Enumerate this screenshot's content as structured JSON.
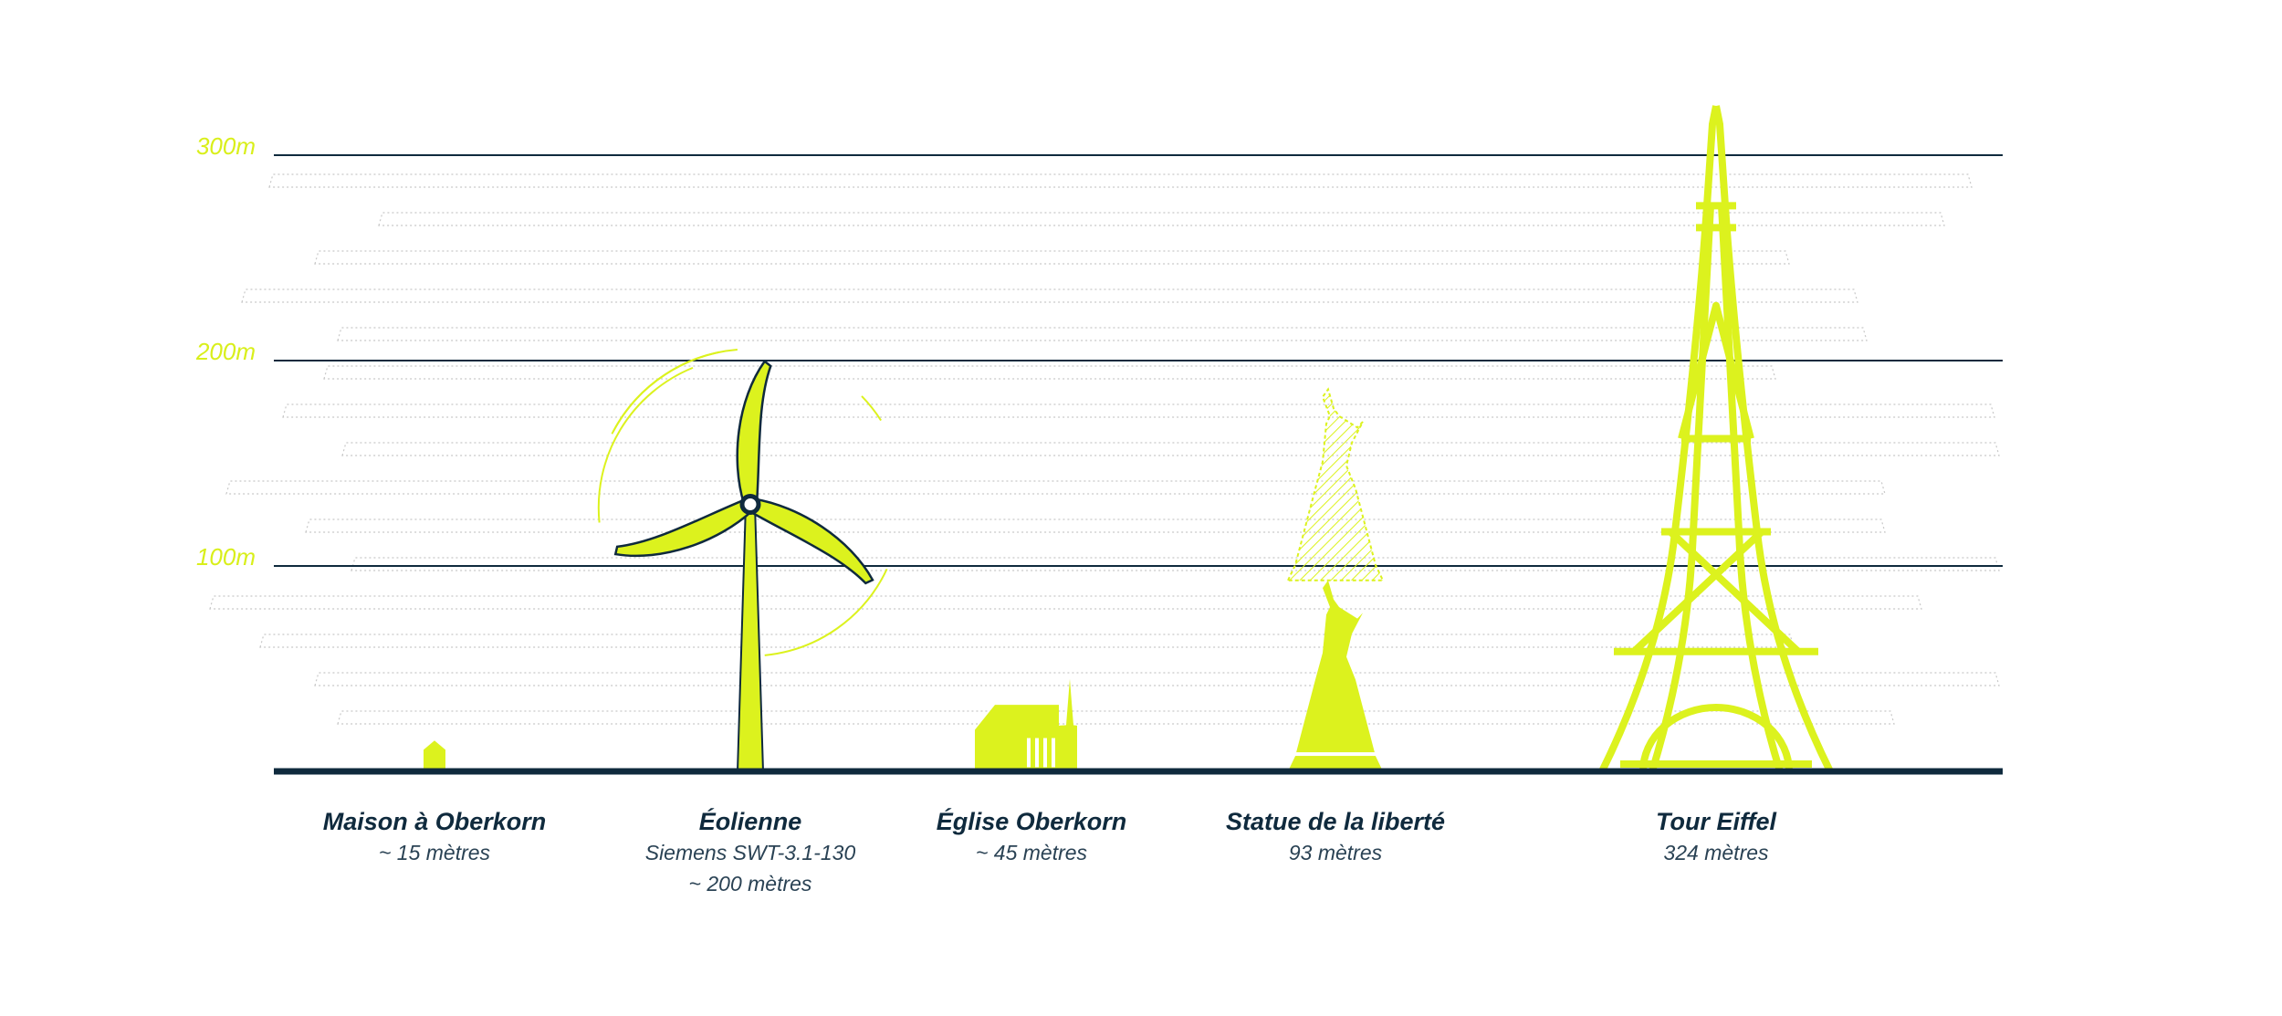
{
  "chart_data": {
    "type": "height-comparison",
    "categories": [
      "Maison à Oberkorn",
      "Éolienne",
      "Église Oberkorn",
      "Statue de la liberté",
      "Tour Eiffel"
    ],
    "model_labels": [
      null,
      "Siemens SWT-3.1-130",
      null,
      null,
      null
    ],
    "values": [
      15,
      200,
      45,
      93,
      324
    ],
    "value_labels": [
      "~ 15 mètres",
      "~ 200 mètres",
      "~ 45 mètres",
      "93 mètres",
      "324 mètres"
    ],
    "color": "#dcf21e",
    "ylim": [
      0,
      300
    ],
    "yticks": [
      {
        "value": 100,
        "label": "100m"
      },
      {
        "value": 200,
        "label": "200m"
      },
      {
        "value": 300,
        "label": "300m"
      }
    ],
    "grid": true
  }
}
